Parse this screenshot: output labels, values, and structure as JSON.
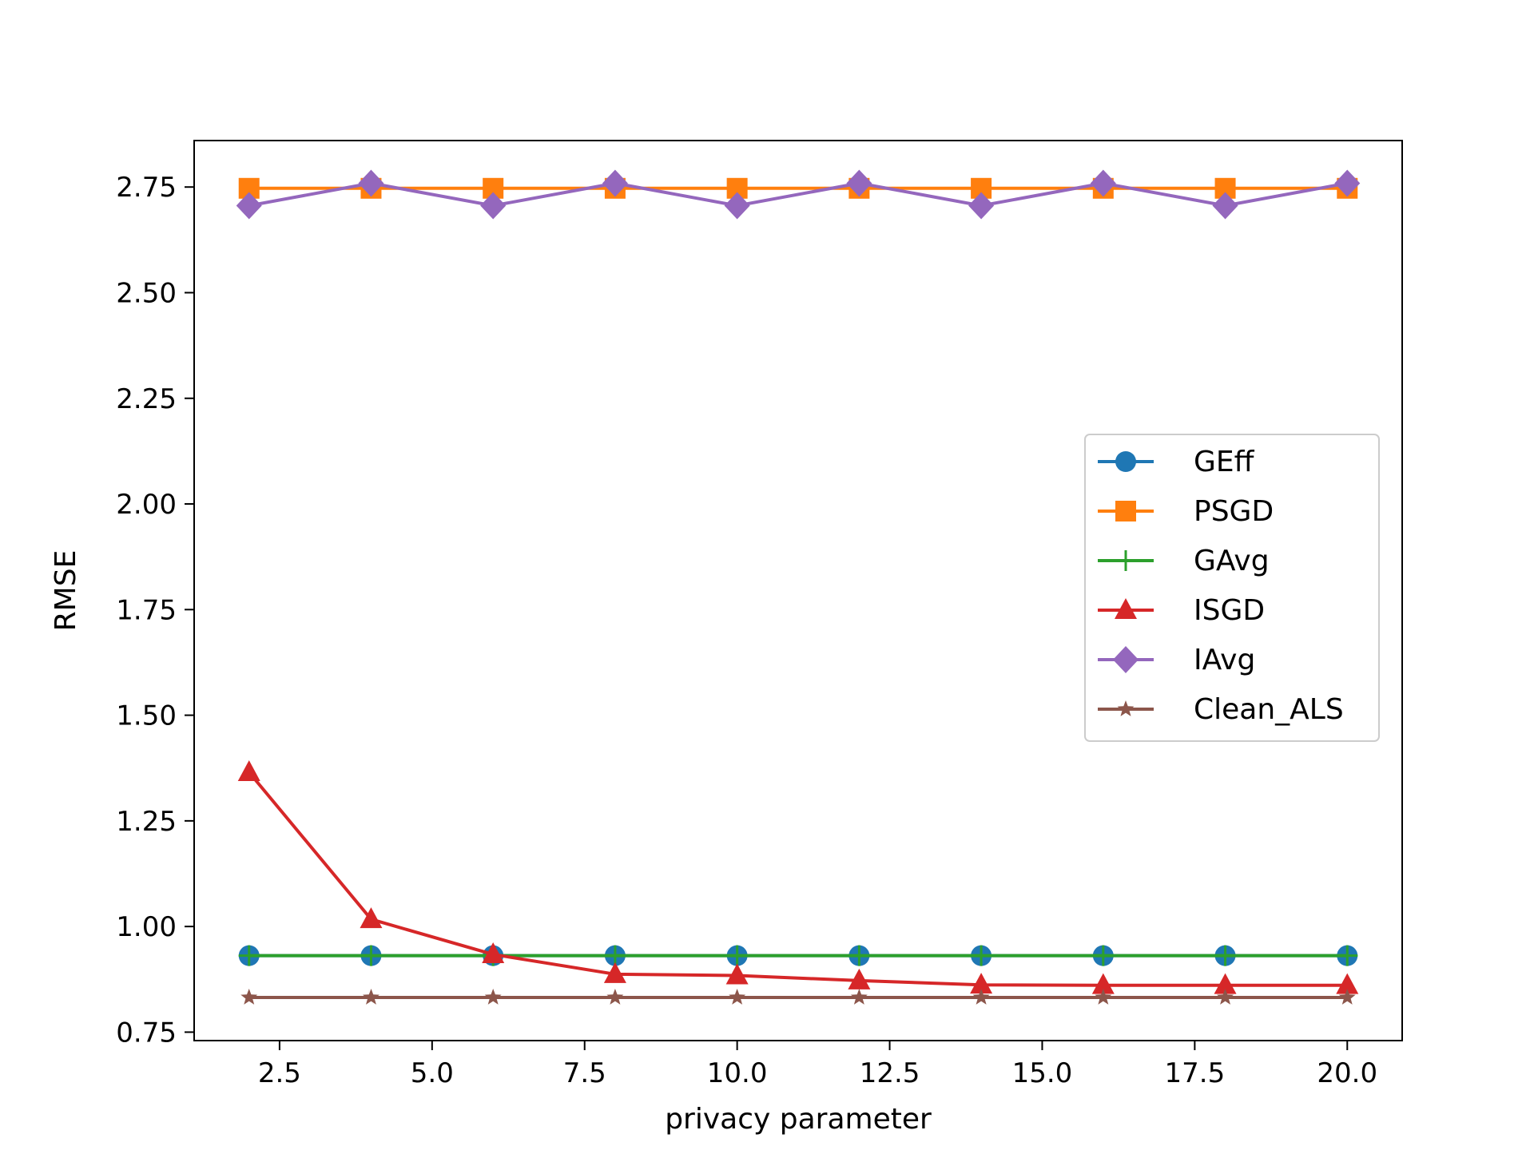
{
  "chart_data": {
    "type": "line",
    "title": "",
    "xlabel": "privacy parameter",
    "ylabel": "RMSE",
    "xlim": [
      1.1,
      20.9
    ],
    "ylim": [
      0.73,
      2.86
    ],
    "xticks": [
      2.5,
      5.0,
      7.5,
      10.0,
      12.5,
      15.0,
      17.5,
      20.0
    ],
    "xtick_labels": [
      "2.5",
      "5.0",
      "7.5",
      "10.0",
      "12.5",
      "15.0",
      "17.5",
      "20.0"
    ],
    "yticks": [
      0.75,
      1.0,
      1.25,
      1.5,
      1.75,
      2.0,
      2.25,
      2.5,
      2.75
    ],
    "ytick_labels": [
      "0.75",
      "1.00",
      "1.25",
      "1.50",
      "1.75",
      "2.00",
      "2.25",
      "2.50",
      "2.75"
    ],
    "grid": false,
    "legend_position": "center-right",
    "x": [
      2,
      4,
      6,
      8,
      10,
      12,
      14,
      16,
      18,
      20
    ],
    "series": [
      {
        "name": "GEff",
        "color": "#1f77b4",
        "marker": "circle",
        "values": [
          0.931,
          0.931,
          0.931,
          0.931,
          0.931,
          0.931,
          0.931,
          0.931,
          0.931,
          0.931
        ]
      },
      {
        "name": "PSGD",
        "color": "#ff7f0e",
        "marker": "square",
        "values": [
          2.747,
          2.747,
          2.747,
          2.747,
          2.747,
          2.747,
          2.747,
          2.747,
          2.747,
          2.747
        ]
      },
      {
        "name": "GAvg",
        "color": "#2ca02c",
        "marker": "plus",
        "values": [
          0.931,
          0.931,
          0.931,
          0.931,
          0.931,
          0.931,
          0.931,
          0.931,
          0.931,
          0.931
        ]
      },
      {
        "name": "ISGD",
        "color": "#d62728",
        "marker": "triangle",
        "values": [
          1.365,
          1.017,
          0.934,
          0.887,
          0.884,
          0.872,
          0.862,
          0.861,
          0.861,
          0.861
        ]
      },
      {
        "name": "IAvg",
        "color": "#9467bd",
        "marker": "diamond",
        "values": [
          2.706,
          2.759,
          2.706,
          2.759,
          2.706,
          2.759,
          2.706,
          2.759,
          2.706,
          2.759
        ]
      },
      {
        "name": "Clean_ALS",
        "color": "#8c564b",
        "marker": "star",
        "values": [
          0.832,
          0.832,
          0.832,
          0.832,
          0.832,
          0.832,
          0.832,
          0.832,
          0.832,
          0.832
        ]
      }
    ]
  }
}
